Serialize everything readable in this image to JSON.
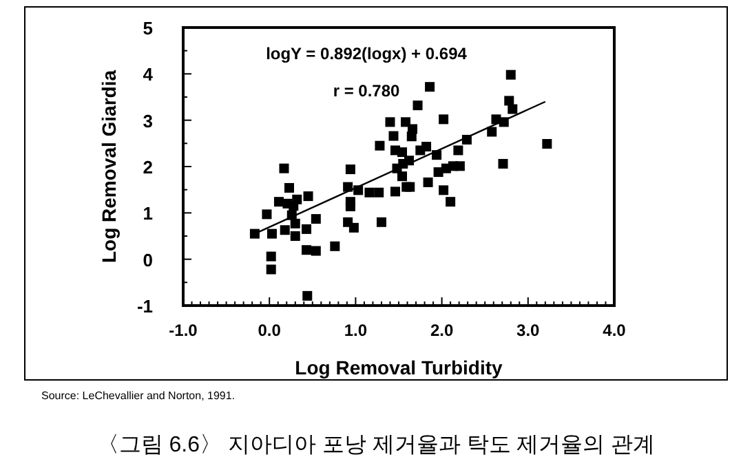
{
  "chart_data": {
    "type": "scatter",
    "xlabel": "Log Removal Turbidity",
    "ylabel": "Log Removal Giardia",
    "xlim": [
      -1,
      4
    ],
    "ylim": [
      -1,
      5
    ],
    "xticks": [
      {
        "value": -1,
        "label": "-1.0"
      },
      {
        "value": 0,
        "label": "0.0"
      },
      {
        "value": 1,
        "label": "1.0"
      },
      {
        "value": 2,
        "label": "2.0"
      },
      {
        "value": 3,
        "label": "3.0"
      },
      {
        "value": 4,
        "label": "4.0"
      }
    ],
    "yticks": [
      -1,
      0,
      1,
      2,
      3,
      4,
      5
    ],
    "grid": false,
    "marker": "square",
    "series": [
      {
        "color": "#000000",
        "x": [
          -0.17,
          -0.03,
          0.03,
          0.02,
          0.02,
          0.17,
          0.11,
          0.23,
          0.21,
          0.26,
          0.28,
          0.32,
          0.3,
          0.18,
          0.3,
          0.45,
          0.43,
          0.54,
          0.43,
          0.54,
          0.44,
          0.76,
          0.94,
          0.91,
          1.03,
          0.94,
          0.94,
          0.91,
          0.98,
          1.16,
          1.27,
          1.3,
          1.28,
          1.4,
          1.44,
          1.46,
          1.46,
          1.48,
          1.54,
          1.55,
          1.54,
          1.58,
          1.59,
          1.63,
          1.62,
          1.65,
          1.66,
          1.72,
          1.75,
          1.82,
          1.84,
          1.86,
          1.94,
          1.96,
          2.02,
          2.02,
          2.05,
          2.1,
          2.13,
          2.19,
          2.21,
          2.29,
          2.58,
          2.63,
          2.72,
          2.71,
          2.78,
          2.8,
          2.82,
          3.22
        ],
        "values": [
          0.55,
          0.97,
          0.55,
          0.06,
          -0.22,
          1.96,
          1.24,
          1.54,
          1.2,
          0.95,
          1.15,
          1.29,
          0.77,
          0.63,
          0.5,
          1.36,
          0.65,
          0.87,
          0.2,
          0.18,
          -0.79,
          0.28,
          1.94,
          1.56,
          1.49,
          1.24,
          1.14,
          0.8,
          0.68,
          1.44,
          1.44,
          0.8,
          2.45,
          2.96,
          2.66,
          2.35,
          1.46,
          1.96,
          2.31,
          2.06,
          1.79,
          2.96,
          1.56,
          1.56,
          2.13,
          2.65,
          2.81,
          3.32,
          2.35,
          2.43,
          1.66,
          3.72,
          2.25,
          1.88,
          3.02,
          1.49,
          1.96,
          1.24,
          2.01,
          2.35,
          2.01,
          2.58,
          2.75,
          3.02,
          2.96,
          2.06,
          3.42,
          3.98,
          3.24,
          2.49
        ]
      },
      {
        "type": "line",
        "color": "#000000",
        "marker": "none",
        "line_style": "solid",
        "x": [
          -0.17,
          3.2
        ],
        "values": [
          0.55,
          3.4
        ]
      }
    ],
    "annotations": [
      "logY = 0.892(logx) + 0.694",
      "r = 0.780",
      "Source: LeChevallier and Norton, 1991.",
      "〈그림 6.6〉 지아디아 포낭 제거율과 탁도 제거율의 관계"
    ]
  }
}
